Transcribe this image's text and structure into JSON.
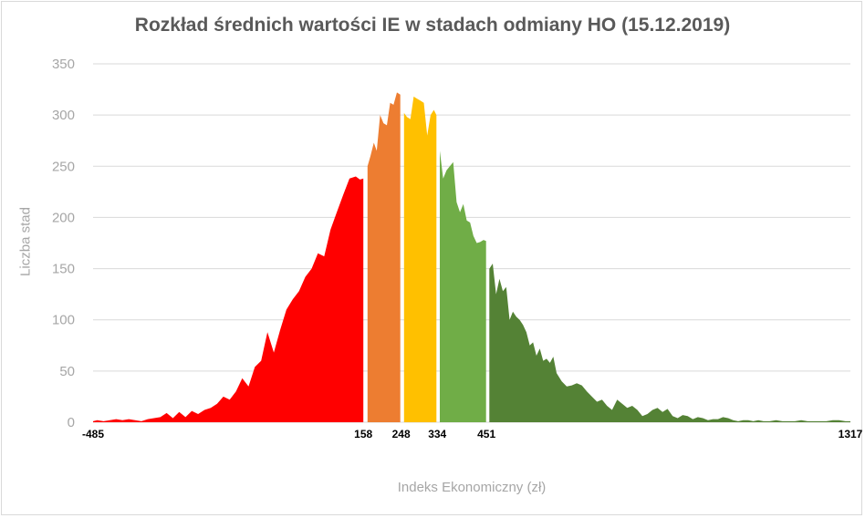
{
  "colors": {
    "red": "#ff0000",
    "orange": "#ed7d31",
    "yellow": "#ffc000",
    "light_green": "#70ad47",
    "dark_green": "#548235",
    "grid": "#d9d9d9",
    "text_grey": "#a6a6a6",
    "title_grey": "#595959"
  },
  "chart_data": {
    "type": "area",
    "title": "Rozkład średnich wartości IE w stadach odmiany HO (15.12.2019)",
    "xlabel": "Indeks Ekonomiczny (zł)",
    "ylabel": "Liczba stad",
    "ylim": [
      0,
      350
    ],
    "xlim": [
      -485,
      1317
    ],
    "yticks": [
      "0",
      "50",
      "100",
      "150",
      "200",
      "250",
      "300",
      "350"
    ],
    "xtick_labels": [
      "-485",
      "158",
      "248",
      "334",
      "451",
      "1317"
    ],
    "grid": true,
    "legend": "none",
    "series": [
      {
        "color": "#ff0000",
        "x": [
          -485,
          -475,
          -460,
          -445,
          -430,
          -415,
          -400,
          -385,
          -370,
          -355,
          -340,
          -325,
          -310,
          -295,
          -280,
          -265,
          -250,
          -235,
          -220,
          -205,
          -190,
          -175,
          -160,
          -145,
          -130,
          -115,
          -100,
          -85,
          -70,
          -55,
          -40,
          -25,
          -10,
          5,
          20,
          35,
          50,
          65,
          80,
          95,
          110,
          125,
          140,
          150,
          158
        ],
        "y": [
          1,
          2,
          1,
          2,
          3,
          2,
          3,
          2,
          1,
          3,
          4,
          5,
          9,
          4,
          10,
          5,
          11,
          8,
          12,
          14,
          18,
          25,
          22,
          30,
          43,
          35,
          54,
          60,
          88,
          68,
          90,
          110,
          120,
          128,
          142,
          150,
          165,
          162,
          188,
          205,
          222,
          238,
          240,
          237,
          238
        ]
      },
      {
        "color": "#ed7d31",
        "x": [
          168,
          175,
          183,
          190,
          198,
          206,
          214,
          222,
          230,
          238,
          246
        ],
        "y": [
          250,
          260,
          273,
          265,
          300,
          292,
          290,
          312,
          310,
          322,
          320
        ]
      },
      {
        "color": "#ffc000",
        "x": [
          255,
          262,
          270,
          278,
          286,
          294,
          302,
          310,
          318,
          326,
          332
        ],
        "y": [
          302,
          298,
          296,
          318,
          316,
          314,
          312,
          280,
          300,
          305,
          300
        ]
      },
      {
        "color": "#70ad47",
        "x": [
          340,
          348,
          356,
          364,
          372,
          380,
          388,
          396,
          404,
          412,
          420,
          428,
          436,
          444,
          450
        ],
        "y": [
          265,
          238,
          246,
          250,
          254,
          215,
          205,
          213,
          197,
          195,
          182,
          175,
          176,
          178,
          177
        ]
      },
      {
        "color": "#548235",
        "x": [
          458,
          466,
          474,
          482,
          490,
          498,
          506,
          514,
          522,
          530,
          538,
          546,
          554,
          562,
          570,
          578,
          586,
          594,
          602,
          610,
          618,
          630,
          642,
          654,
          666,
          678,
          690,
          702,
          714,
          726,
          738,
          750,
          762,
          774,
          786,
          798,
          810,
          822,
          834,
          846,
          858,
          870,
          882,
          894,
          906,
          918,
          930,
          942,
          954,
          966,
          978,
          990,
          1002,
          1014,
          1026,
          1038,
          1050,
          1062,
          1074,
          1086,
          1098,
          1110,
          1125,
          1140,
          1155,
          1170,
          1185,
          1200,
          1215,
          1230,
          1245,
          1260,
          1275,
          1290,
          1305,
          1317
        ],
        "y": [
          150,
          155,
          125,
          140,
          128,
          132,
          100,
          108,
          103,
          100,
          95,
          88,
          75,
          78,
          65,
          72,
          60,
          62,
          58,
          64,
          48,
          40,
          35,
          36,
          38,
          36,
          30,
          25,
          20,
          22,
          16,
          12,
          22,
          18,
          14,
          16,
          12,
          6,
          8,
          12,
          14,
          10,
          13,
          6,
          4,
          7,
          6,
          3,
          5,
          4,
          2,
          3,
          3,
          5,
          4,
          2,
          1,
          2,
          2,
          1,
          2,
          1,
          1,
          2,
          1,
          1,
          1,
          2,
          1,
          1,
          1,
          1,
          2,
          2,
          1,
          1
        ]
      }
    ]
  }
}
